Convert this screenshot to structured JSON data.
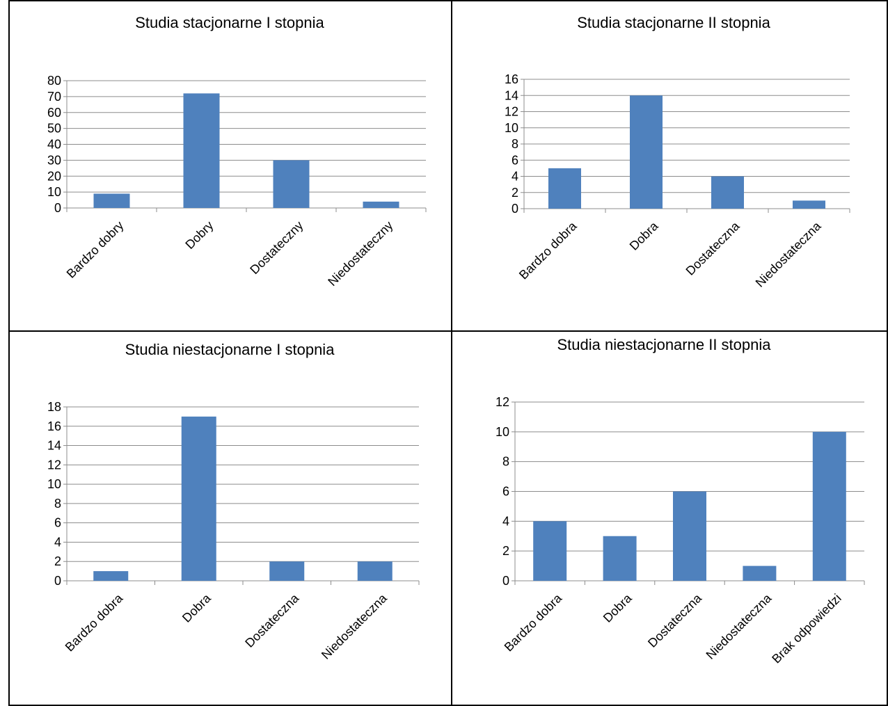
{
  "chart_data": [
    {
      "type": "bar",
      "title": "Studia stacjonarne I stopnia",
      "categories": [
        "Bardzo dobry",
        "Dobry",
        "Dostateczny",
        "Niedostateczny"
      ],
      "values": [
        9,
        72,
        30,
        4
      ],
      "ylim": [
        0,
        80
      ],
      "yticks": [
        0,
        10,
        20,
        30,
        40,
        50,
        60,
        70,
        80
      ],
      "grid": true,
      "legend": "none",
      "bar_color": "#4f81bd"
    },
    {
      "type": "bar",
      "title": "Studia stacjonarne II stopnia",
      "categories": [
        "Bardzo dobra",
        "Dobra",
        "Dostateczna",
        "Niedostateczna"
      ],
      "values": [
        5,
        14,
        4,
        1
      ],
      "ylim": [
        0,
        16
      ],
      "yticks": [
        0,
        2,
        4,
        6,
        8,
        10,
        12,
        14,
        16
      ],
      "grid": true,
      "legend": "none",
      "bar_color": "#4f81bd"
    },
    {
      "type": "bar",
      "title": "Studia niestacjonarne I stopnia",
      "categories": [
        "Bardzo dobra",
        "Dobra",
        "Dostateczna",
        "Niedostateczna"
      ],
      "values": [
        1,
        17,
        2,
        2
      ],
      "ylim": [
        0,
        18
      ],
      "yticks": [
        0,
        2,
        4,
        6,
        8,
        10,
        12,
        14,
        16,
        18
      ],
      "grid": true,
      "legend": "none",
      "bar_color": "#4f81bd"
    },
    {
      "type": "bar",
      "title": "Studia niestacjonarne II stopnia",
      "categories": [
        "Bardzo dobra",
        "Dobra",
        "Dostateczna",
        "Niedostateczna",
        "Brak odpowiedzi"
      ],
      "values": [
        4,
        3,
        6,
        1,
        10
      ],
      "ylim": [
        0,
        12
      ],
      "yticks": [
        0,
        2,
        4,
        6,
        8,
        10,
        12
      ],
      "grid": true,
      "legend": "none",
      "bar_color": "#4f81bd"
    }
  ]
}
